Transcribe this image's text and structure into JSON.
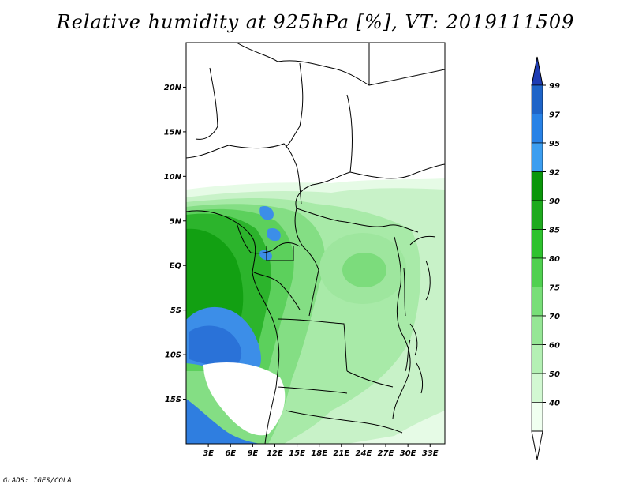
{
  "title": "Relative humidity at 925hPa [%], VT: 2019111509",
  "credit": "GrADS: IGES/COLA",
  "map": {
    "lon_range": [
      0,
      35
    ],
    "lat_range": [
      -20,
      25
    ],
    "lat_ticks": [
      "20N",
      "15N",
      "10N",
      "5N",
      "EQ",
      "5S",
      "10S",
      "15S"
    ],
    "lon_ticks": [
      "3E",
      "6E",
      "9E",
      "12E",
      "15E",
      "18E",
      "21E",
      "24E",
      "27E",
      "30E",
      "33E"
    ],
    "region": "Central Africa"
  },
  "colorbar": {
    "levels": [
      "99",
      "97",
      "95",
      "92",
      "90",
      "85",
      "80",
      "75",
      "70",
      "60",
      "50",
      "40"
    ],
    "colors": [
      "#1e64c8",
      "#2882e6",
      "#3c9ef0",
      "#0a960a",
      "#1eaa1e",
      "#2ec22e",
      "#50d050",
      "#78de78",
      "#96e696",
      "#b4f0b4",
      "#d2f8d2",
      "#f0fff0"
    ],
    "top_arrow_color": "#1e3cb4",
    "bottom_arrow_color": "#ffffff"
  }
}
